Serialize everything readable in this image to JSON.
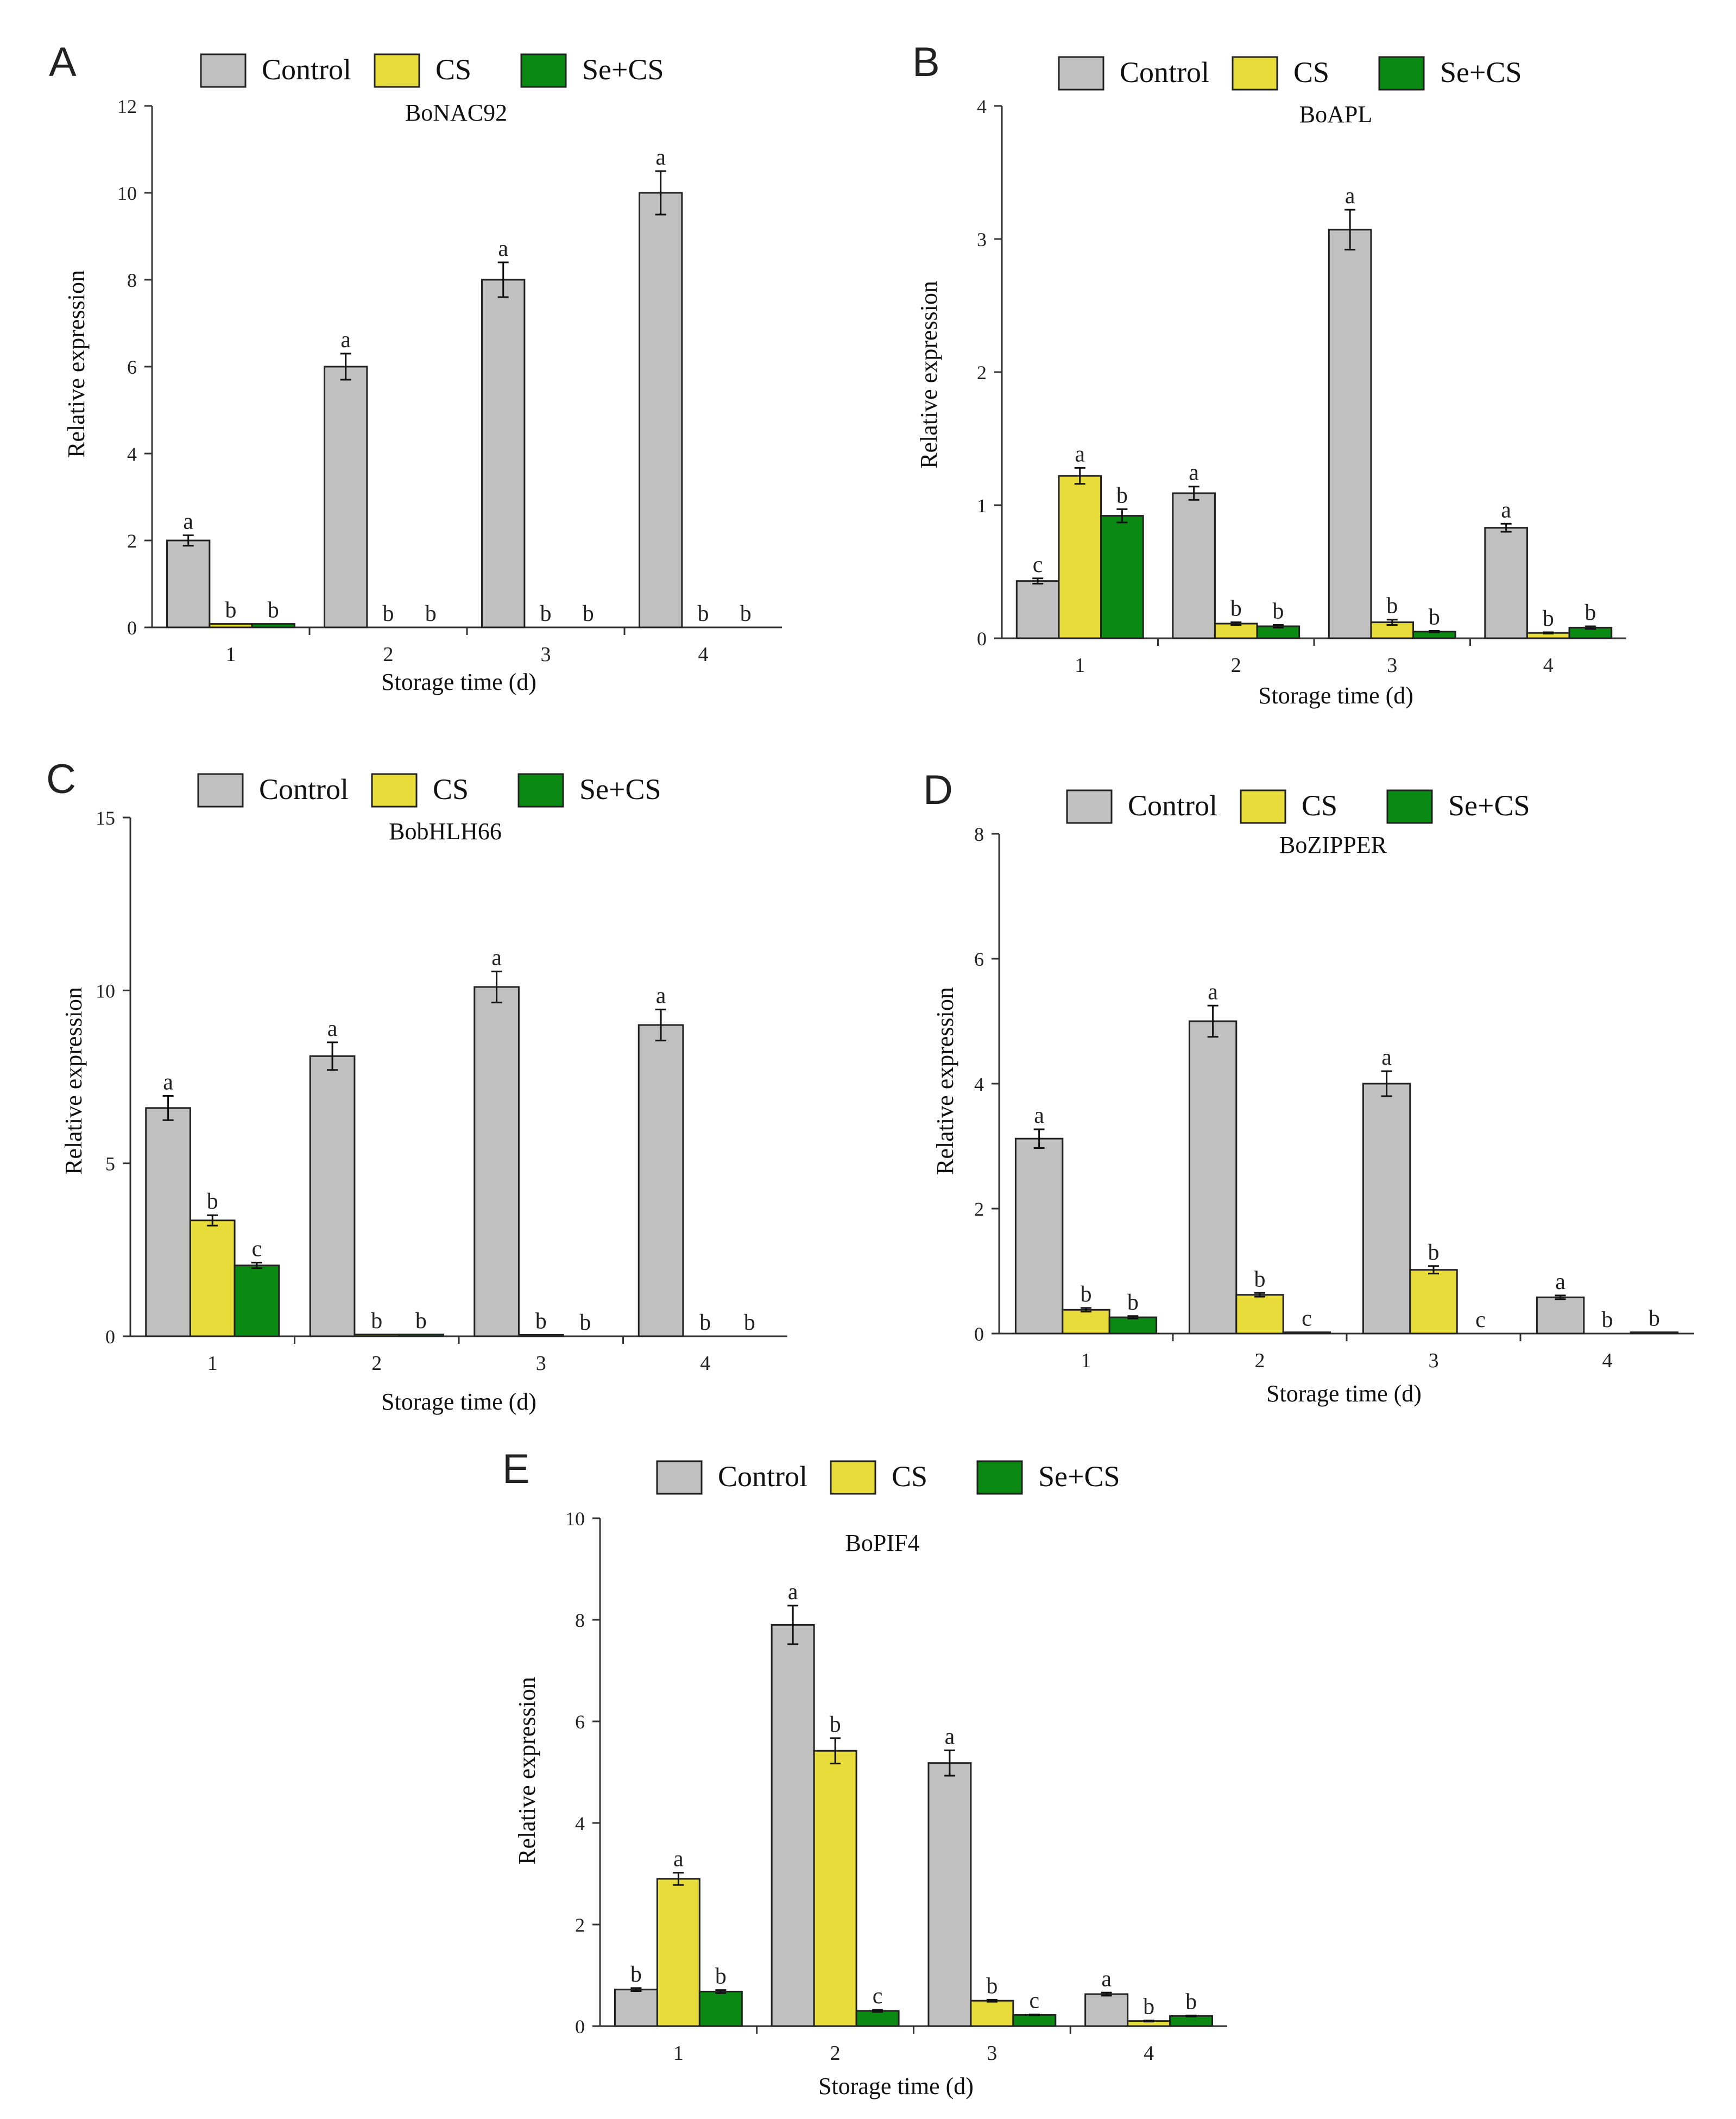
{
  "figure": {
    "legend": [
      {
        "label": "Control",
        "color": "#c0c0c0"
      },
      {
        "label": "CS",
        "color": "#e8dc3a"
      },
      {
        "label": "Se+CS",
        "color": "#0a8a12"
      }
    ],
    "ylabel": "Relative expression",
    "xlabel": "Storage time (d)"
  },
  "chart_data": [
    {
      "panel": "A",
      "type": "bar",
      "title": "BoNAC92",
      "categories": [
        "1",
        "2",
        "3",
        "4"
      ],
      "ylim": [
        0,
        12
      ],
      "yticks": [
        0,
        2,
        4,
        6,
        8,
        10,
        12
      ],
      "xlabel": "Storage time (d)",
      "ylabel": "Relative expression",
      "series": [
        {
          "name": "Control",
          "values": [
            2.0,
            6.0,
            8.0,
            10.0
          ],
          "errors": [
            0.12,
            0.3,
            0.4,
            0.5
          ],
          "letters": [
            "a",
            "a",
            "a",
            "a"
          ]
        },
        {
          "name": "CS",
          "values": [
            0.08,
            0,
            0,
            0
          ],
          "errors": [
            0,
            0,
            0,
            0
          ],
          "letters": [
            "b",
            "b",
            "b",
            "b"
          ]
        },
        {
          "name": "Se+CS",
          "values": [
            0.08,
            0,
            0,
            0
          ],
          "errors": [
            0,
            0,
            0,
            0
          ],
          "letters": [
            "b",
            "b",
            "b",
            "b"
          ]
        }
      ]
    },
    {
      "panel": "B",
      "type": "bar",
      "title": "BoAPL",
      "categories": [
        "1",
        "2",
        "3",
        "4"
      ],
      "ylim": [
        0,
        4
      ],
      "yticks": [
        0,
        1,
        2,
        3,
        4
      ],
      "xlabel": "Storage time (d)",
      "ylabel": "Relative expression",
      "series": [
        {
          "name": "Control",
          "values": [
            0.43,
            1.09,
            3.07,
            0.83
          ],
          "errors": [
            0.02,
            0.05,
            0.15,
            0.03
          ],
          "letters": [
            "c",
            "a",
            "a",
            "a"
          ]
        },
        {
          "name": "CS",
          "values": [
            1.22,
            0.11,
            0.12,
            0.04
          ],
          "errors": [
            0.06,
            0.01,
            0.02,
            0.005
          ],
          "letters": [
            "a",
            "b",
            "b",
            "b"
          ]
        },
        {
          "name": "Se+CS",
          "values": [
            0.92,
            0.09,
            0.05,
            0.08
          ],
          "errors": [
            0.05,
            0.01,
            0.005,
            0.01
          ],
          "letters": [
            "b",
            "b",
            "b",
            "b"
          ]
        }
      ]
    },
    {
      "panel": "C",
      "type": "bar",
      "title": "BobHLH66",
      "categories": [
        "1",
        "2",
        "3",
        "4"
      ],
      "ylim": [
        0,
        15
      ],
      "yticks": [
        0,
        5,
        10,
        15
      ],
      "xlabel": "Storage time (d)",
      "ylabel": "Relative expression",
      "series": [
        {
          "name": "Control",
          "values": [
            6.6,
            8.1,
            10.1,
            9.0
          ],
          "errors": [
            0.35,
            0.4,
            0.45,
            0.45
          ],
          "letters": [
            "a",
            "a",
            "a",
            "a"
          ]
        },
        {
          "name": "CS",
          "values": [
            3.35,
            0.05,
            0.04,
            0
          ],
          "errors": [
            0.15,
            0,
            0,
            0
          ],
          "letters": [
            "b",
            "b",
            "b",
            "b"
          ]
        },
        {
          "name": "Se+CS",
          "values": [
            2.05,
            0.05,
            0,
            0
          ],
          "errors": [
            0.08,
            0,
            0,
            0
          ],
          "letters": [
            "c",
            "b",
            "b",
            "b"
          ]
        }
      ]
    },
    {
      "panel": "D",
      "type": "bar",
      "title": "BoZIPPER",
      "categories": [
        "1",
        "2",
        "3",
        "4"
      ],
      "ylim": [
        0,
        8
      ],
      "yticks": [
        0,
        2,
        4,
        6,
        8
      ],
      "xlabel": "Storage time (d)",
      "ylabel": "Relative expression",
      "series": [
        {
          "name": "Control",
          "values": [
            3.12,
            5.0,
            4.0,
            0.58
          ],
          "errors": [
            0.15,
            0.25,
            0.2,
            0.03
          ],
          "letters": [
            "a",
            "a",
            "a",
            "a"
          ]
        },
        {
          "name": "CS",
          "values": [
            0.38,
            0.62,
            1.02,
            0
          ],
          "errors": [
            0.03,
            0.03,
            0.06,
            0
          ],
          "letters": [
            "b",
            "b",
            "b",
            "b"
          ]
        },
        {
          "name": "Se+CS",
          "values": [
            0.26,
            0.02,
            0,
            0.02
          ],
          "errors": [
            0.02,
            0,
            0,
            0
          ],
          "letters": [
            "b",
            "c",
            "c",
            "b"
          ]
        }
      ]
    },
    {
      "panel": "E",
      "type": "bar",
      "title": "BoPIF4",
      "categories": [
        "1",
        "2",
        "3",
        "4"
      ],
      "ylim": [
        0,
        10
      ],
      "yticks": [
        0,
        2,
        4,
        6,
        8,
        10
      ],
      "xlabel": "Storage time (d)",
      "ylabel": "Relative expression",
      "series": [
        {
          "name": "Control",
          "values": [
            0.72,
            7.9,
            5.18,
            0.63
          ],
          "errors": [
            0.03,
            0.38,
            0.25,
            0.03
          ],
          "letters": [
            "b",
            "a",
            "a",
            "a"
          ]
        },
        {
          "name": "CS",
          "values": [
            2.9,
            5.42,
            0.5,
            0.1
          ],
          "errors": [
            0.12,
            0.25,
            0.02,
            0.01
          ],
          "letters": [
            "a",
            "b",
            "b",
            "b"
          ]
        },
        {
          "name": "Se+CS",
          "values": [
            0.68,
            0.3,
            0.22,
            0.2
          ],
          "errors": [
            0.03,
            0.02,
            0.01,
            0.01
          ],
          "letters": [
            "b",
            "c",
            "c",
            "b"
          ]
        }
      ]
    }
  ]
}
